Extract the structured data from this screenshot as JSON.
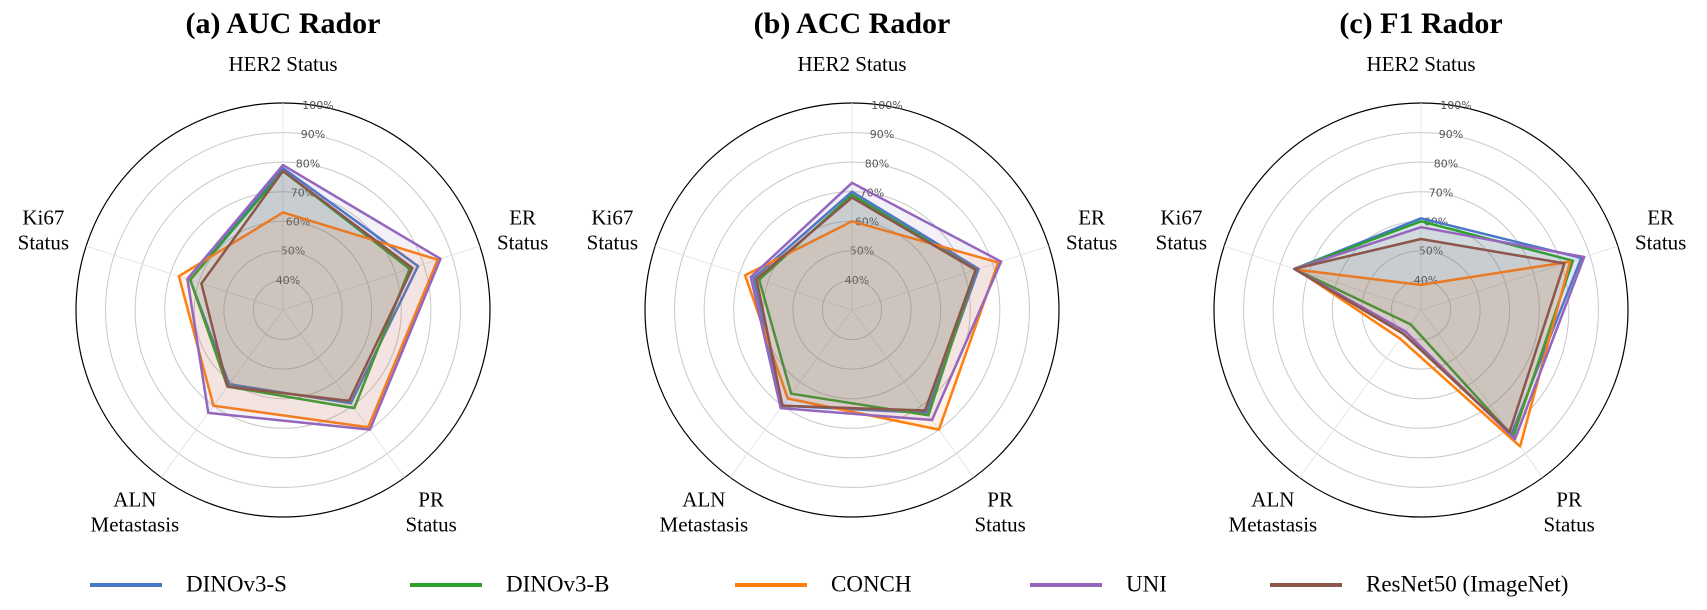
{
  "chart_data": [
    {
      "type": "radar",
      "title": "(a) AUC Rador",
      "categories": [
        "HER2 Status",
        "ER\nStatus",
        "PR\nStatus",
        "ALN\nMetastasis",
        "Ki67\nStatus"
      ],
      "ylim": [
        30,
        100
      ],
      "yticks": [
        {
          "value": 40,
          "label": "40%"
        },
        {
          "value": 50,
          "label": "50%"
        },
        {
          "value": 60,
          "label": "60%"
        },
        {
          "value": 70,
          "label": "70%"
        },
        {
          "value": 80,
          "label": "80%"
        },
        {
          "value": 90,
          "label": "90%"
        },
        {
          "value": 100,
          "label": "100%"
        }
      ],
      "series": [
        {
          "name": "DINOv3-S",
          "color": "#4a78c9",
          "values": [
            78,
            78,
            69,
            61,
            63
          ]
        },
        {
          "name": "DINOv3-B",
          "color": "#2ca02c",
          "values": [
            77,
            75,
            71,
            62,
            63
          ]
        },
        {
          "name": "CONCH",
          "color": "#ff7f0e",
          "values": [
            63,
            85,
            79,
            70,
            67
          ]
        },
        {
          "name": "UNI",
          "color": "#9467bd",
          "values": [
            79,
            86,
            80,
            73,
            64
          ]
        },
        {
          "name": "ResNet50 (ImageNet)",
          "color": "#8c564b",
          "values": [
            77,
            76,
            68,
            62,
            59
          ]
        }
      ]
    },
    {
      "type": "radar",
      "title": "(b) ACC Rador",
      "categories": [
        "HER2 Status",
        "ER\nStatus",
        "PR\nStatus",
        "ALN\nMetastasis",
        "Ki67\nStatus"
      ],
      "ylim": [
        30,
        100
      ],
      "yticks": [
        {
          "value": 40,
          "label": "40%"
        },
        {
          "value": 50,
          "label": "50%"
        },
        {
          "value": 60,
          "label": "60%"
        },
        {
          "value": 70,
          "label": "70%"
        },
        {
          "value": 80,
          "label": "80%"
        },
        {
          "value": 90,
          "label": "90%"
        },
        {
          "value": 100,
          "label": "100%"
        }
      ],
      "series": [
        {
          "name": "DINOv3-S",
          "color": "#4a78c9",
          "values": [
            70,
            75,
            73,
            70,
            65
          ]
        },
        {
          "name": "DINOv3-B",
          "color": "#2ca02c",
          "values": [
            69,
            74,
            74,
            65,
            63
          ]
        },
        {
          "name": "CONCH",
          "color": "#ff7f0e",
          "values": [
            60,
            82,
            80,
            67,
            68
          ]
        },
        {
          "name": "UNI",
          "color": "#9467bd",
          "values": [
            73,
            83,
            76,
            71,
            66
          ]
        },
        {
          "name": "ResNet50 (ImageNet)",
          "color": "#8c564b",
          "values": [
            68,
            74,
            72,
            70,
            64
          ]
        }
      ]
    },
    {
      "type": "radar",
      "title": "(c) F1 Rador",
      "categories": [
        "HER2 Status",
        "ER\nStatus",
        "PR\nStatus",
        "ALN\nMetastasis",
        "Ki67\nStatus"
      ],
      "ylim": [
        30,
        100
      ],
      "yticks": [
        {
          "value": 40,
          "label": "40%"
        },
        {
          "value": 50,
          "label": "50%"
        },
        {
          "value": 60,
          "label": "60%"
        },
        {
          "value": 70,
          "label": "70%"
        },
        {
          "value": 80,
          "label": "80%"
        },
        {
          "value": 90,
          "label": "90%"
        },
        {
          "value": 100,
          "label": "100%"
        }
      ],
      "series": [
        {
          "name": "DINOv3-S",
          "color": "#4a78c9",
          "values": [
            61,
            87,
            82,
            40,
            75
          ]
        },
        {
          "name": "DINOv3-B",
          "color": "#2ca02c",
          "values": [
            60,
            84,
            83,
            36,
            75
          ]
        },
        {
          "name": "CONCH",
          "color": "#ff7f0e",
          "values": [
            38.5,
            83,
            87,
            42,
            74
          ]
        },
        {
          "name": "UNI",
          "color": "#9467bd",
          "values": [
            58,
            88,
            84,
            39,
            75
          ]
        },
        {
          "name": "ResNet50 (ImageNet)",
          "color": "#8c564b",
          "values": [
            54,
            81,
            81,
            40,
            75
          ]
        }
      ]
    }
  ]
}
